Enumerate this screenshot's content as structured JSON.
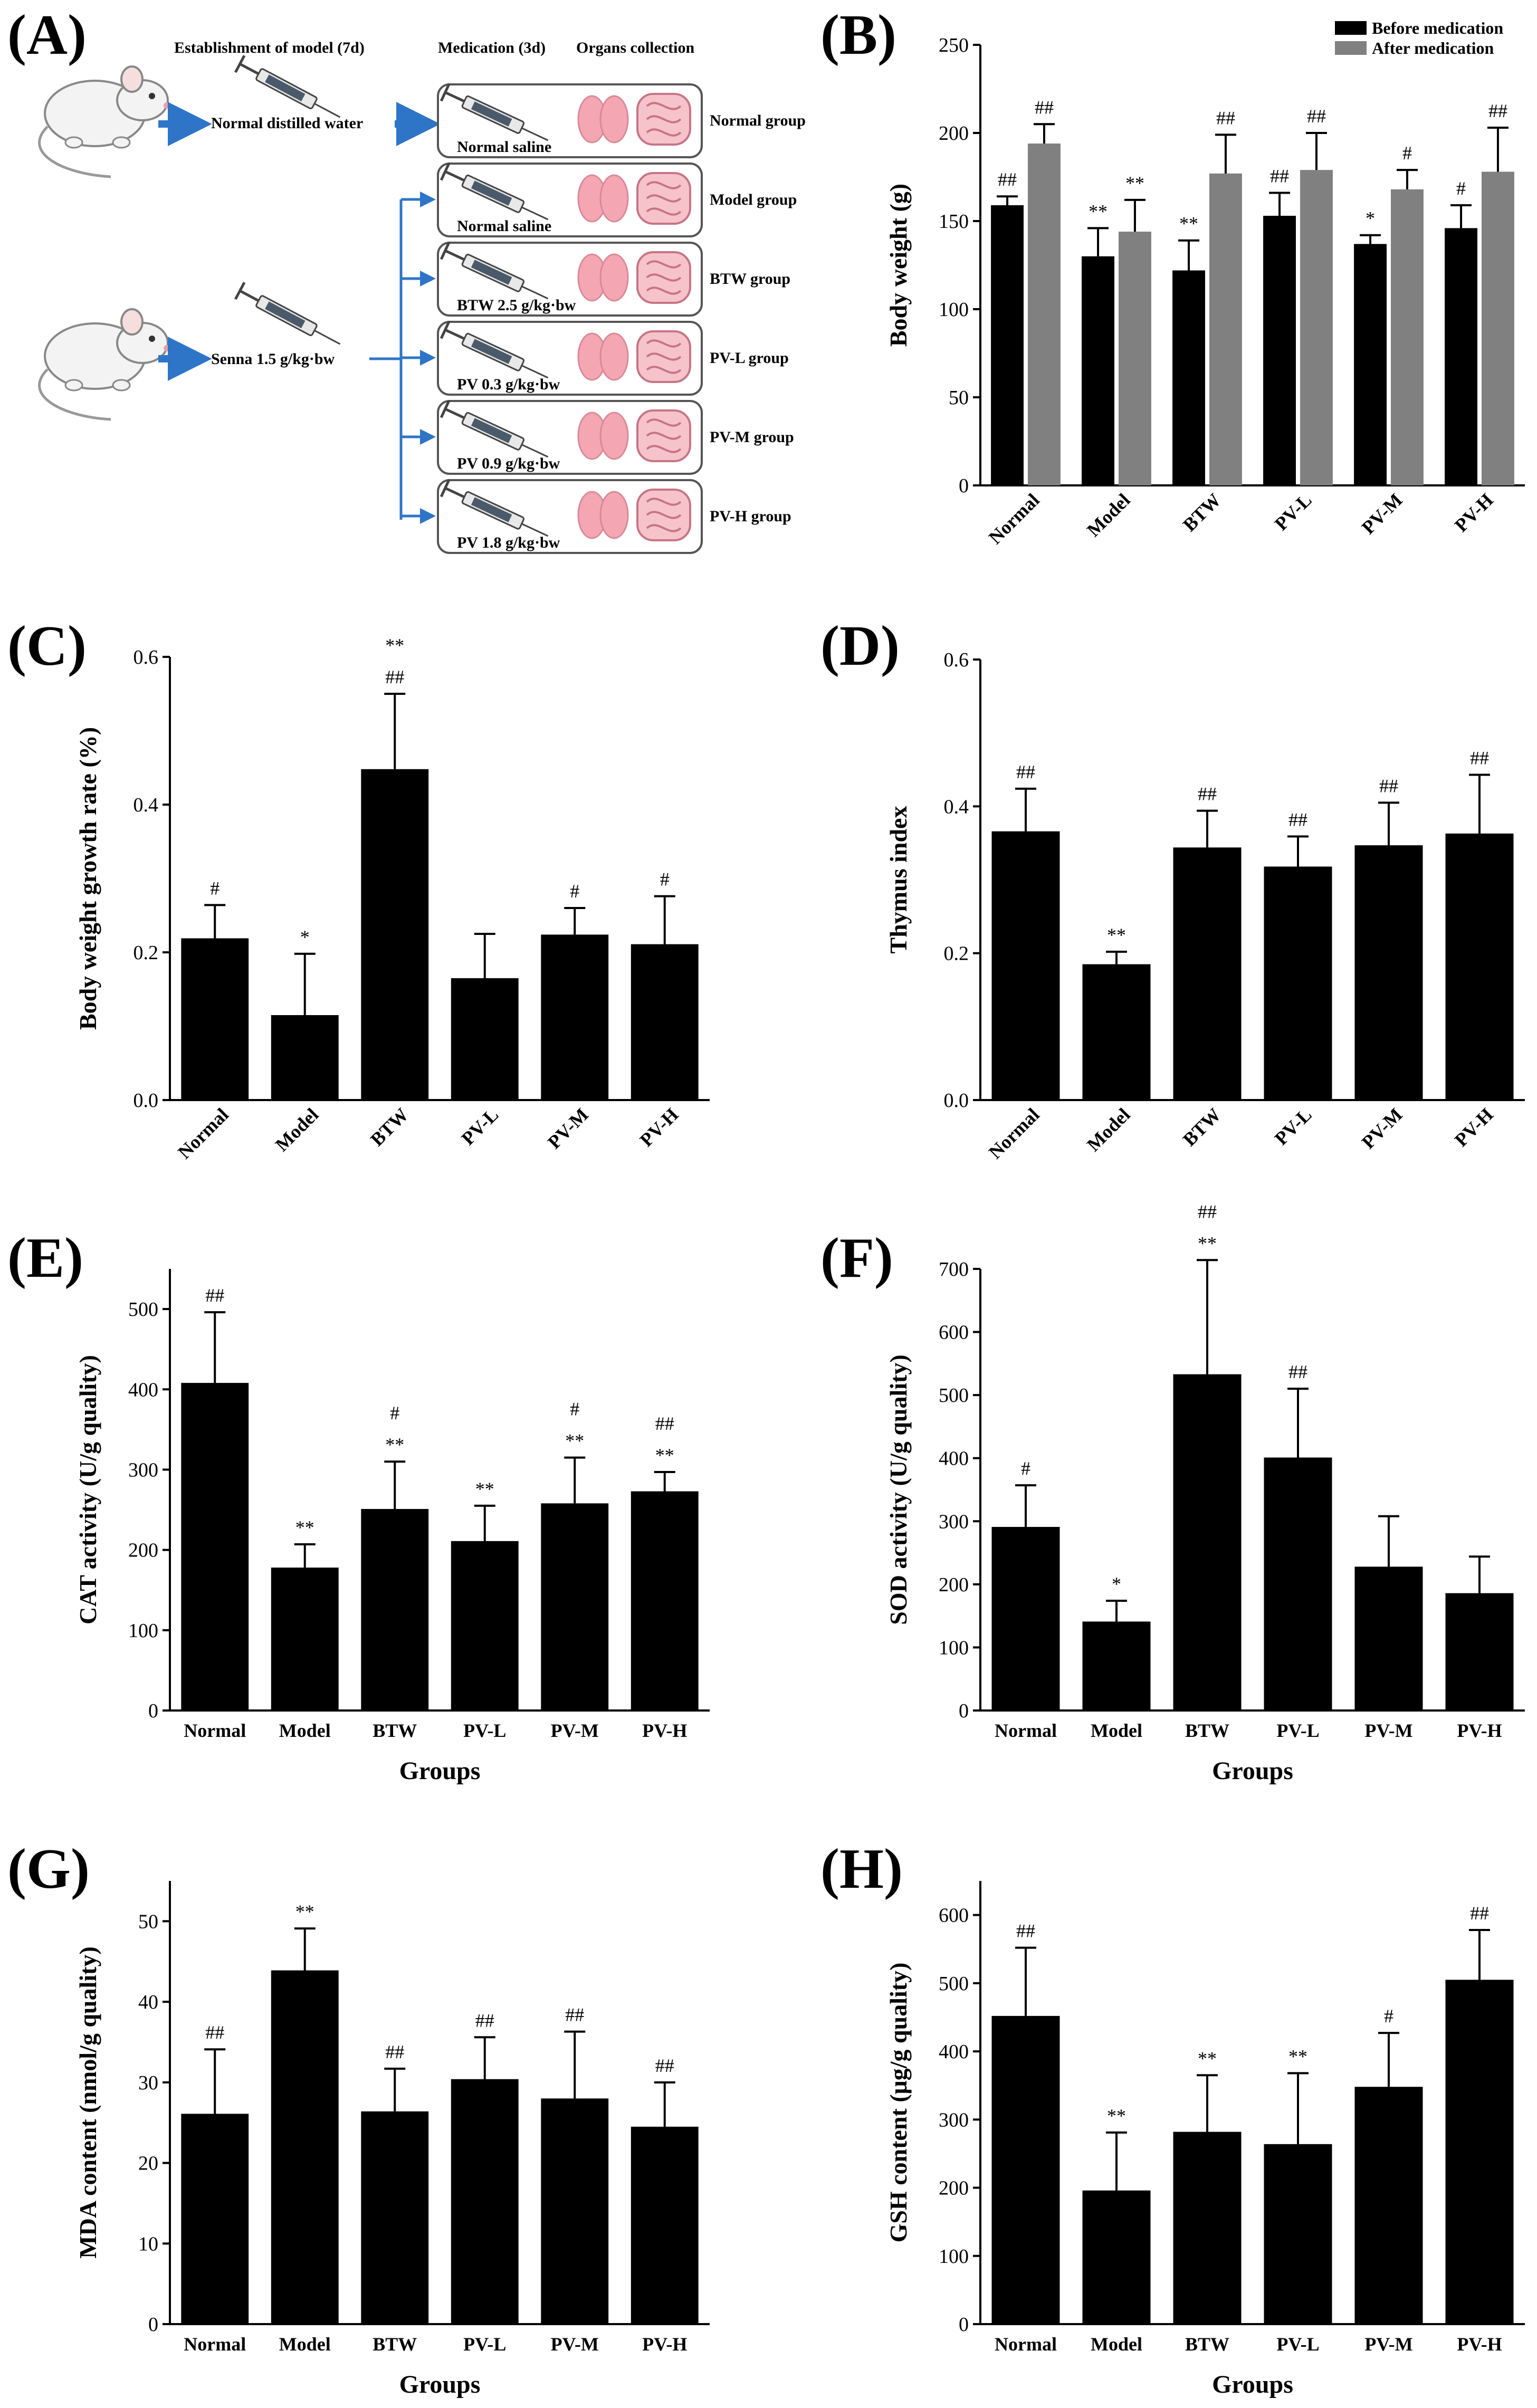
{
  "panels": {
    "A": "(A)",
    "B": "(B)",
    "C": "(C)",
    "D": "(D)",
    "E": "(E)",
    "F": "(F)",
    "G": "(G)",
    "H": "(H)"
  },
  "schematic": {
    "establishment": "Establishment of model (7d)",
    "medication": "Medication (3d)",
    "organs": "Organs collection",
    "normal_water": "Normal distilled water",
    "senna": "Senna 1.5 g/kg·bw",
    "groups": [
      {
        "dose": "Normal saline",
        "name": "Normal group"
      },
      {
        "dose": "Normal saline",
        "name": "Model group"
      },
      {
        "dose": "BTW 2.5 g/kg·bw",
        "name": "BTW group"
      },
      {
        "dose": "PV 0.3 g/kg·bw",
        "name": "PV-L group"
      },
      {
        "dose": "PV 0.9 g/kg·bw",
        "name": "PV-M group"
      },
      {
        "dose": "PV 1.8 g/kg·bw",
        "name": "PV-H group"
      }
    ]
  },
  "colors": {
    "before": "#000000",
    "after": "#808080",
    "arrow": "#2E75C8",
    "organ": "#F4A6B2"
  },
  "chart_data": [
    {
      "id": "B",
      "type": "bar",
      "categories": [
        "Normal",
        "Model",
        "BTW",
        "PV-L",
        "PV-M",
        "PV-H"
      ],
      "ylabel": "Body weight (g)",
      "xlabel": "",
      "ylim": [
        0,
        250
      ],
      "yticks": [
        0,
        50,
        100,
        150,
        200,
        250
      ],
      "rotate_labels": true,
      "legend": [
        "Before medication",
        "After medication"
      ],
      "series": [
        {
          "name": "Before medication",
          "values": [
            159,
            130,
            122,
            153,
            137,
            146
          ],
          "errors": [
            5,
            16,
            17,
            13,
            5,
            13
          ],
          "sig": [
            [
              "##"
            ],
            [
              "**"
            ],
            [
              "**"
            ],
            [
              "##"
            ],
            [
              "*"
            ],
            [
              "#"
            ]
          ]
        },
        {
          "name": "After medication",
          "values": [
            194,
            144,
            177,
            179,
            168,
            178
          ],
          "errors": [
            11,
            18,
            22,
            21,
            11,
            25
          ],
          "sig": [
            [
              "##"
            ],
            [
              "**"
            ],
            [
              "##"
            ],
            [
              "##"
            ],
            [
              "#"
            ],
            [
              "##"
            ]
          ]
        }
      ]
    },
    {
      "id": "C",
      "type": "bar",
      "categories": [
        "Normal",
        "Model",
        "BTW",
        "PV-L",
        "PV-M",
        "PV-H"
      ],
      "ylabel": "Body weight growth rate (%)",
      "xlabel": "",
      "ylim": [
        0,
        0.6
      ],
      "yticks": [
        "0.0",
        "0.2",
        "0.4",
        "0.6"
      ],
      "rotate_labels": true,
      "series": [
        {
          "name": "growth rate",
          "values": [
            0.219,
            0.115,
            0.448,
            0.165,
            0.224,
            0.211
          ],
          "errors": [
            0.045,
            0.083,
            0.102,
            0.06,
            0.036,
            0.065
          ],
          "sig": [
            [
              "#"
            ],
            [
              "*"
            ],
            [
              "##",
              "**"
            ],
            [],
            [
              "#"
            ],
            [
              "#"
            ]
          ]
        }
      ]
    },
    {
      "id": "D",
      "type": "bar",
      "categories": [
        "Normal",
        "Model",
        "BTW",
        "PV-L",
        "PV-M",
        "PV-H"
      ],
      "ylabel": "Thymus index",
      "xlabel": "",
      "ylim": [
        0,
        0.6
      ],
      "yticks": [
        "0.0",
        "0.2",
        "0.4",
        "0.6"
      ],
      "rotate_labels": true,
      "series": [
        {
          "name": "thymus index",
          "values": [
            0.366,
            0.185,
            0.344,
            0.318,
            0.347,
            0.363
          ],
          "errors": [
            0.058,
            0.017,
            0.05,
            0.041,
            0.058,
            0.08
          ],
          "sig": [
            [
              "##"
            ],
            [
              "**"
            ],
            [
              "##"
            ],
            [
              "##"
            ],
            [
              "##"
            ],
            [
              "##"
            ]
          ]
        }
      ]
    },
    {
      "id": "E",
      "type": "bar",
      "categories": [
        "Normal",
        "Model",
        "BTW",
        "PV-L",
        "PV-M",
        "PV-H"
      ],
      "ylabel": "CAT activity (U/g quality)",
      "xlabel": "Groups",
      "ylim": [
        0,
        550
      ],
      "yticks": [
        0,
        100,
        200,
        300,
        400,
        500
      ],
      "rotate_labels": false,
      "series": [
        {
          "name": "CAT",
          "values": [
            408,
            178,
            251,
            211,
            258,
            273
          ],
          "errors": [
            88,
            29,
            59,
            44,
            57,
            24
          ],
          "sig": [
            [
              "##"
            ],
            [
              "**"
            ],
            [
              "**",
              "#"
            ],
            [
              "**"
            ],
            [
              "**",
              "#"
            ],
            [
              "**",
              "##"
            ]
          ]
        }
      ]
    },
    {
      "id": "F",
      "type": "bar",
      "categories": [
        "Normal",
        "Model",
        "BTW",
        "PV-L",
        "PV-M",
        "PV-H"
      ],
      "ylabel": "SOD activity (U/g quality)",
      "xlabel": "Groups",
      "ylim": [
        0,
        700
      ],
      "yticks": [
        0,
        100,
        200,
        300,
        400,
        500,
        600,
        700
      ],
      "rotate_labels": false,
      "series": [
        {
          "name": "SOD",
          "values": [
            291,
            141,
            533,
            401,
            228,
            186
          ],
          "errors": [
            66,
            33,
            181,
            109,
            80,
            58
          ],
          "sig": [
            [
              "#"
            ],
            [
              "*"
            ],
            [
              "**",
              "##"
            ],
            [
              "##"
            ],
            [],
            []
          ]
        }
      ]
    },
    {
      "id": "G",
      "type": "bar",
      "categories": [
        "Normal",
        "Model",
        "BTW",
        "PV-L",
        "PV-M",
        "PV-H"
      ],
      "ylabel": "MDA content (nmol/g quality)",
      "xlabel": "Groups",
      "ylim": [
        0,
        55
      ],
      "yticks": [
        0,
        10,
        20,
        30,
        40,
        50
      ],
      "rotate_labels": false,
      "series": [
        {
          "name": "MDA",
          "values": [
            26.1,
            43.9,
            26.4,
            30.4,
            28.0,
            24.5
          ],
          "errors": [
            8.0,
            5.2,
            5.3,
            5.2,
            8.3,
            5.5
          ],
          "sig": [
            [
              "##"
            ],
            [
              "**"
            ],
            [
              "##"
            ],
            [
              "##"
            ],
            [
              "##"
            ],
            [
              "##"
            ]
          ]
        }
      ]
    },
    {
      "id": "H",
      "type": "bar",
      "categories": [
        "Normal",
        "Model",
        "BTW",
        "PV-L",
        "PV-M",
        "PV-H"
      ],
      "ylabel": "GSH content (μg/g quality)",
      "xlabel": "Groups",
      "ylim": [
        0,
        650
      ],
      "yticks": [
        0,
        100,
        200,
        300,
        400,
        500,
        600
      ],
      "rotate_labels": false,
      "series": [
        {
          "name": "GSH",
          "values": [
            452,
            196,
            282,
            264,
            348,
            505
          ],
          "errors": [
            100,
            85,
            83,
            104,
            79,
            73
          ],
          "sig": [
            [
              "##"
            ],
            [
              "**"
            ],
            [
              "**"
            ],
            [
              "**"
            ],
            [
              "#"
            ],
            [
              "##"
            ]
          ]
        }
      ]
    }
  ]
}
